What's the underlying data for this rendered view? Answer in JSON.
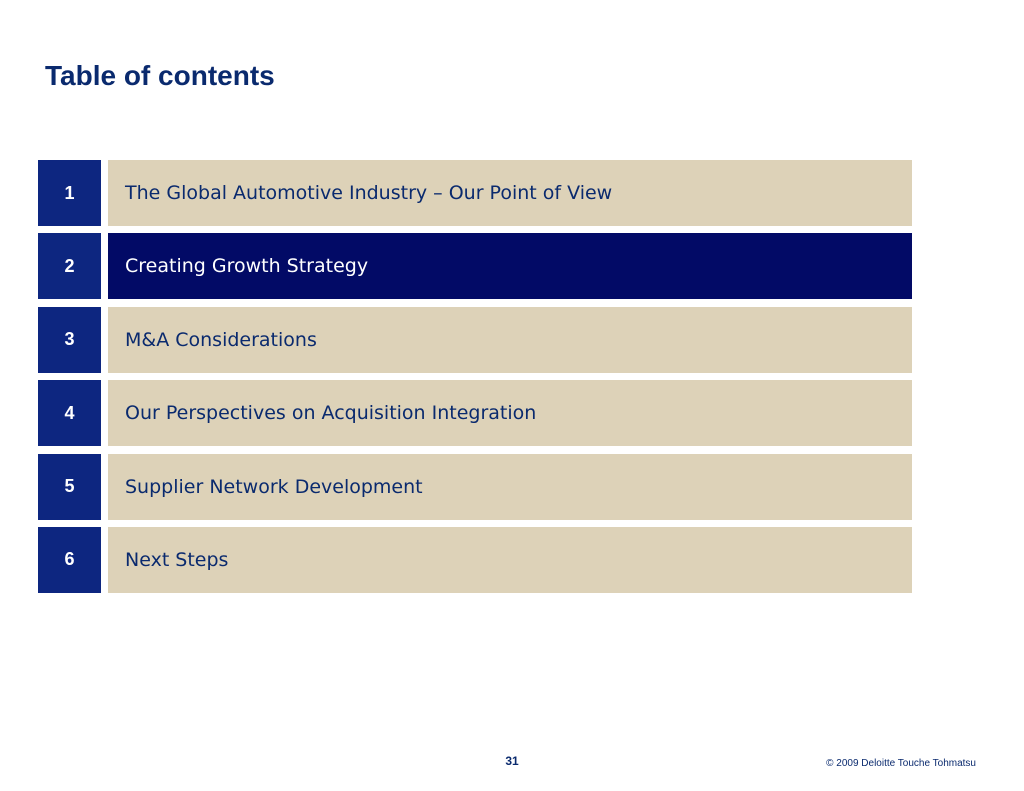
{
  "page_title": "Table of contents",
  "toc": {
    "items": [
      {
        "number": "1",
        "label": "The Global Automotive Industry – Our Point of View"
      },
      {
        "number": "2",
        "label": "Creating Growth Strategy"
      },
      {
        "number": "3",
        "label": "M&A Considerations"
      },
      {
        "number": "4",
        "label": "Our Perspectives on Acquisition Integration"
      },
      {
        "number": "5",
        "label": "Supplier Network Development"
      },
      {
        "number": "6",
        "label": "Next Steps"
      }
    ],
    "active_number": "2"
  },
  "footer": {
    "page_number": "31",
    "copyright": "© 2009 Deloitte Touche Tohmatsu"
  },
  "colors": {
    "title_text": "#0a2a6e",
    "number_box": "#0d2680",
    "item_bar": "#ddd2b8",
    "active_bar": "#020a66",
    "active_text": "#ffffff"
  }
}
